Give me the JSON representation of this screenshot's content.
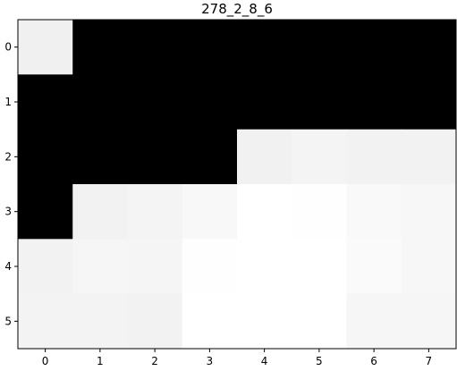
{
  "chart_data": {
    "type": "heatmap",
    "title": "278_2_8_6",
    "colormap": "gray",
    "vmin": 0,
    "vmax": 255,
    "x_ticks": [
      "0",
      "1",
      "2",
      "3",
      "4",
      "5",
      "6",
      "7"
    ],
    "y_ticks": [
      "0",
      "1",
      "2",
      "3",
      "4",
      "5"
    ],
    "values": [
      [
        240,
        0,
        0,
        0,
        0,
        0,
        0,
        0
      ],
      [
        0,
        0,
        0,
        0,
        0,
        0,
        0,
        0
      ],
      [
        0,
        0,
        0,
        0,
        241,
        244,
        242,
        242
      ],
      [
        0,
        242,
        244,
        248,
        255,
        254,
        249,
        247
      ],
      [
        242,
        246,
        245,
        254,
        255,
        255,
        250,
        247
      ],
      [
        243,
        243,
        242,
        255,
        255,
        255,
        246,
        246
      ]
    ],
    "grid": false
  }
}
